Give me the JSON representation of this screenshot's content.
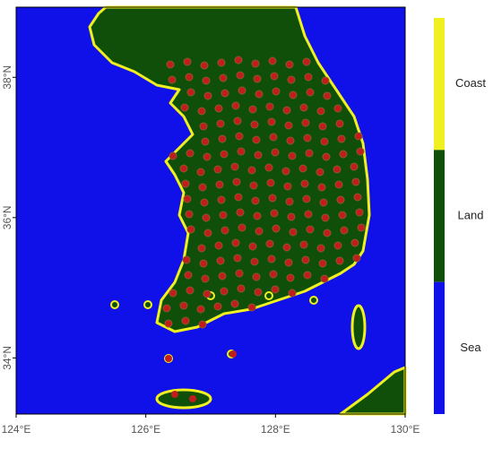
{
  "chart_data": {
    "type": "map",
    "xlim": [
      124,
      130
    ],
    "ylim": [
      33.2,
      39
    ],
    "xticks": [
      {
        "value": 124,
        "label": "124°E"
      },
      {
        "value": 126,
        "label": "126°E"
      },
      {
        "value": 128,
        "label": "128°E"
      },
      {
        "value": 130,
        "label": "130°E"
      }
    ],
    "yticks": [
      {
        "value": 34,
        "label": "34°N"
      },
      {
        "value": 36,
        "label": "36°N"
      },
      {
        "value": 38,
        "label": "38°N"
      }
    ],
    "legend": [
      {
        "label": "Coast",
        "color": "#f0f020"
      },
      {
        "label": "Land",
        "color": "#0f4f0a"
      },
      {
        "label": "Sea",
        "color": "#1010e8"
      }
    ]
  }
}
